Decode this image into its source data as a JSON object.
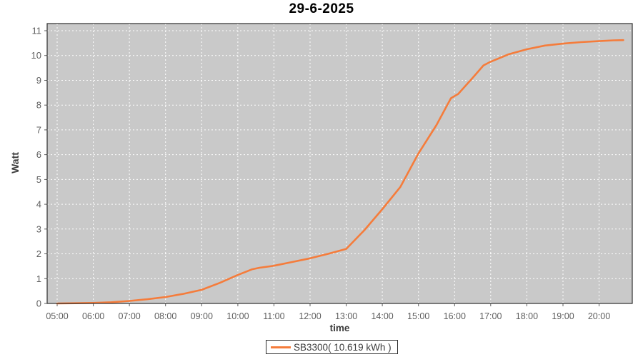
{
  "chart_data": {
    "type": "line",
    "title": "29-6-2025",
    "xlabel": "time",
    "ylabel": "Watt",
    "ylim": [
      0,
      11
    ],
    "xlim_hours": [
      4.72,
      20.92
    ],
    "grid": "white dashed gridlines on gray plot background",
    "legend": {
      "position": "bottom-center",
      "label": "SB3300( 10.619 kWh )"
    },
    "colors": {
      "series": "#F57C3B",
      "plot_bg": "#C9C9C9",
      "grid": "#FFFFFF",
      "tick_label": "#5E5E5E",
      "axis_label": "#3C3C3C",
      "title": "#000000",
      "plot_border": "#2E2E2E",
      "legend_border": "#2E2E2E",
      "page_bg": "#FFFFFF"
    },
    "x_ticks": [
      {
        "h": 5,
        "label": "05:00"
      },
      {
        "h": 6,
        "label": "06:00"
      },
      {
        "h": 7,
        "label": "07:00"
      },
      {
        "h": 8,
        "label": "08:00"
      },
      {
        "h": 9,
        "label": "09:00"
      },
      {
        "h": 10,
        "label": "10:00"
      },
      {
        "h": 11,
        "label": "11:00"
      },
      {
        "h": 12,
        "label": "12:00"
      },
      {
        "h": 13,
        "label": "13:00"
      },
      {
        "h": 14,
        "label": "14:00"
      },
      {
        "h": 15,
        "label": "15:00"
      },
      {
        "h": 16,
        "label": "16:00"
      },
      {
        "h": 17,
        "label": "17:00"
      },
      {
        "h": 18,
        "label": "18:00"
      },
      {
        "h": 19,
        "label": "19:00"
      },
      {
        "h": 20,
        "label": "20:00"
      }
    ],
    "y_ticks": [
      {
        "v": 0,
        "label": "0"
      },
      {
        "v": 1,
        "label": "1"
      },
      {
        "v": 2,
        "label": "2"
      },
      {
        "v": 3,
        "label": "3"
      },
      {
        "v": 4,
        "label": "4"
      },
      {
        "v": 5,
        "label": "5"
      },
      {
        "v": 6,
        "label": "6"
      },
      {
        "v": 7,
        "label": "7"
      },
      {
        "v": 8,
        "label": "8"
      },
      {
        "v": 9,
        "label": "9"
      },
      {
        "v": 10,
        "label": "10"
      },
      {
        "v": 11,
        "label": "11"
      }
    ],
    "series": [
      {
        "name": "SB3300",
        "total_kwh": 10.619,
        "color": "#F57C3B",
        "x_hours": [
          5.0,
          5.5,
          6.0,
          6.5,
          7.0,
          7.5,
          8.0,
          8.5,
          9.0,
          9.5,
          10.0,
          10.4,
          10.6,
          11.0,
          11.5,
          12.0,
          12.5,
          13.0,
          13.5,
          14.0,
          14.5,
          15.0,
          15.5,
          15.9,
          16.1,
          16.5,
          16.8,
          17.0,
          17.5,
          18.0,
          18.5,
          19.0,
          19.5,
          20.0,
          20.4,
          20.67
        ],
        "y_kwh": [
          0.0,
          0.01,
          0.02,
          0.05,
          0.1,
          0.17,
          0.26,
          0.39,
          0.55,
          0.83,
          1.15,
          1.38,
          1.44,
          1.52,
          1.67,
          1.82,
          2.0,
          2.2,
          2.95,
          3.8,
          4.7,
          6.05,
          7.2,
          8.28,
          8.45,
          9.1,
          9.6,
          9.75,
          10.05,
          10.25,
          10.4,
          10.48,
          10.54,
          10.58,
          10.61,
          10.62
        ]
      }
    ]
  }
}
